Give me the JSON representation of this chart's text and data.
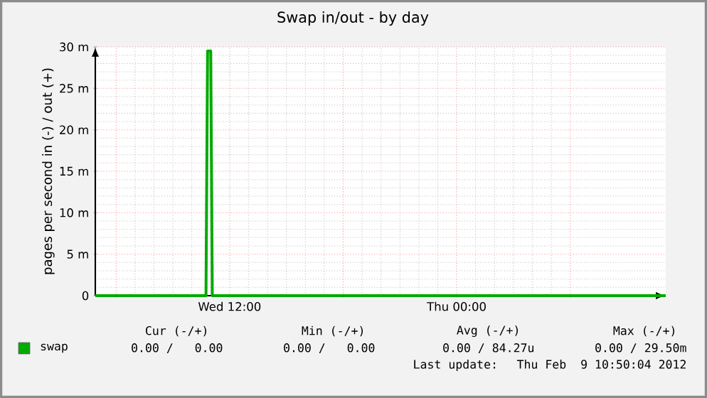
{
  "chart_data": {
    "type": "line",
    "title": "Swap in/out - by day",
    "ylabel": "pages per second in (-) / out (+)",
    "xlim": [
      "2012-02-08T04:54",
      "2012-02-09T11:03"
    ],
    "ylim": [
      0,
      30
    ],
    "xticks": [
      {
        "value": "2012-02-08T06:00",
        "label": null
      },
      {
        "value": "2012-02-08T12:00",
        "label": "Wed 12:00"
      },
      {
        "value": "2012-02-08T18:00",
        "label": null
      },
      {
        "value": "2012-02-09T00:00",
        "label": "Thu 00:00"
      },
      {
        "value": "2012-02-09T06:00",
        "label": null
      }
    ],
    "yticks": [
      {
        "value": 0,
        "label": "0"
      },
      {
        "value": 5,
        "label": "5 m"
      },
      {
        "value": 10,
        "label": "10 m"
      },
      {
        "value": 15,
        "label": "15 m"
      },
      {
        "value": 20,
        "label": "20 m"
      },
      {
        "value": 25,
        "label": "25 m"
      },
      {
        "value": 30,
        "label": "30 m"
      }
    ],
    "grid": true,
    "legend": "bottom",
    "series": [
      {
        "name": "swap",
        "color": "#00aa00",
        "x": [
          "2012-02-08T04:54",
          "2012-02-08T10:45",
          "2012-02-08T10:50",
          "2012-02-08T11:00",
          "2012-02-08T11:05",
          "2012-02-09T11:03"
        ],
        "values": [
          0,
          0,
          29.5,
          29.5,
          0,
          0
        ]
      }
    ],
    "annotations": [
      "Cur (-/+)",
      "Min (-/+)",
      "Avg (-/+)",
      "Max (-/+)",
      "0.00 /   0.00",
      "0.00 /   0.00",
      "0.00 / 84.27u",
      "0.00 / 29.50m",
      "Last update:  Thu Feb  9 10:50:04 2012"
    ]
  }
}
